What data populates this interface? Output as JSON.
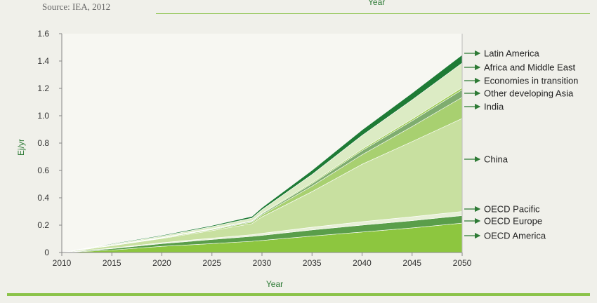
{
  "source": "Source: IEA, 2012",
  "top_axis_label": "Year",
  "chart_data": {
    "type": "area",
    "stacked": true,
    "xlabel": "Year",
    "ylabel": "Ej/yr",
    "xlim": [
      2010,
      2050
    ],
    "ylim": [
      0,
      1.6
    ],
    "x_ticks": [
      "2010",
      "2015",
      "2020",
      "2025",
      "2030",
      "2035",
      "2040",
      "2045",
      "2050"
    ],
    "y_ticks": [
      "0",
      "0.2",
      "0.4",
      "0.6",
      "0.8",
      "1.0",
      "1.2",
      "1.4",
      "1.6"
    ],
    "x": [
      2010,
      2015,
      2020,
      2025,
      2029,
      2030,
      2035,
      2040,
      2045,
      2050
    ],
    "series": [
      {
        "name": "OECD America",
        "color": "#8dc63f",
        "values": [
          0,
          0.018,
          0.045,
          0.065,
          0.082,
          0.088,
          0.12,
          0.15,
          0.18,
          0.215
        ]
      },
      {
        "name": "OECD Europe",
        "color": "#5a9e4a",
        "values": [
          0,
          0.01,
          0.02,
          0.03,
          0.036,
          0.037,
          0.045,
          0.05,
          0.053,
          0.055
        ]
      },
      {
        "name": "OECD Pacific",
        "color": "#e8f0d8",
        "values": [
          0,
          0.004,
          0.007,
          0.01,
          0.013,
          0.015,
          0.02,
          0.025,
          0.028,
          0.03
        ]
      },
      {
        "name": "China",
        "color": "#c8e0a0",
        "values": [
          0,
          0.018,
          0.03,
          0.055,
          0.08,
          0.12,
          0.26,
          0.42,
          0.55,
          0.68
        ]
      },
      {
        "name": "India",
        "color": "#a8d070",
        "values": [
          0,
          0.002,
          0.004,
          0.007,
          0.011,
          0.015,
          0.04,
          0.07,
          0.11,
          0.155
        ]
      },
      {
        "name": "Other developing Asia",
        "color": "#7fad6f",
        "values": [
          0,
          0.001,
          0.002,
          0.004,
          0.006,
          0.008,
          0.018,
          0.03,
          0.042,
          0.055
        ]
      },
      {
        "name": "Economies in transition",
        "color": "#9ccc50",
        "values": [
          0,
          0.001,
          0.002,
          0.003,
          0.004,
          0.005,
          0.008,
          0.011,
          0.013,
          0.015
        ]
      },
      {
        "name": "Africa and Middle East",
        "color": "#dcebc4",
        "values": [
          0,
          0.006,
          0.01,
          0.015,
          0.02,
          0.025,
          0.06,
          0.1,
          0.14,
          0.18
        ]
      },
      {
        "name": "Latin America",
        "color": "#1e7b35",
        "values": [
          0,
          0.004,
          0.006,
          0.008,
          0.012,
          0.015,
          0.03,
          0.04,
          0.05,
          0.06
        ]
      }
    ],
    "legend_order": [
      "Latin America",
      "Africa and Middle East",
      "Economies in transition",
      "Other developing Asia",
      "India",
      "China",
      "OECD Pacific",
      "OECD Europe",
      "OECD America"
    ],
    "legend_placement": "right, arrows pointing to each band at 2050"
  }
}
